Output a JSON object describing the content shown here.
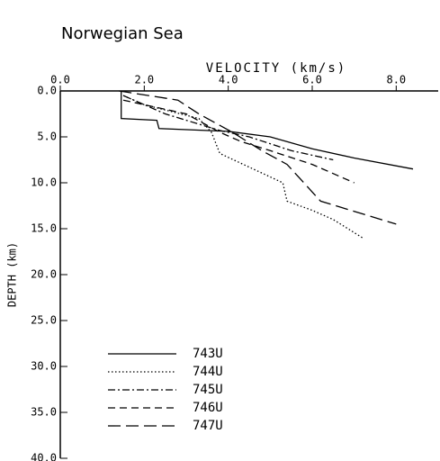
{
  "chart_data": {
    "type": "line",
    "title": "Norwegian Sea",
    "x_label": "VELOCITY (km/s)",
    "y_label": "DEPTH (km)",
    "xlim": [
      0,
      9
    ],
    "ylim": [
      0,
      40
    ],
    "y_inverted": true,
    "x_axis_position": "top",
    "xticks": [
      {
        "value": 0,
        "label": "0.0"
      },
      {
        "value": 2,
        "label": "2.0"
      },
      {
        "value": 4,
        "label": "4.0"
      },
      {
        "value": 6,
        "label": "6.0"
      },
      {
        "value": 8,
        "label": "8.0"
      }
    ],
    "yticks": [
      {
        "value": 0,
        "label": "0.0"
      },
      {
        "value": 5,
        "label": "5.0"
      },
      {
        "value": 10,
        "label": "10.0"
      },
      {
        "value": 15,
        "label": "15.0"
      },
      {
        "value": 20,
        "label": "20.0"
      },
      {
        "value": 25,
        "label": "25.0"
      },
      {
        "value": 30,
        "label": "30.0"
      },
      {
        "value": 35,
        "label": "35.0"
      },
      {
        "value": 40,
        "label": "40.0"
      }
    ],
    "legend": "lower left",
    "series": [
      {
        "name": "743U",
        "color": "#000000",
        "dash": "solid",
        "x": [
          1.45,
          1.45,
          2.3,
          2.35,
          4.0,
          5.0,
          6.0,
          7.0,
          8.4
        ],
        "values": [
          0,
          3.0,
          3.2,
          4.1,
          4.4,
          5.0,
          6.3,
          7.3,
          8.5
        ]
      },
      {
        "name": "744U",
        "color": "#000000",
        "dash": "dotted",
        "x": [
          1.5,
          2.0,
          3.3,
          3.6,
          3.8,
          5.3,
          5.4,
          6.0,
          6.5,
          7.2
        ],
        "values": [
          0.5,
          1.5,
          3.0,
          4.5,
          6.8,
          10.0,
          12.0,
          13.0,
          14.0,
          16.0
        ]
      },
      {
        "name": "745U",
        "color": "#000000",
        "dash": "dashdot",
        "x": [
          1.5,
          2.5,
          3.8,
          4.5,
          5.5,
          6.5
        ],
        "values": [
          0.5,
          2.5,
          4.3,
          5.0,
          6.5,
          7.5
        ]
      },
      {
        "name": "746U",
        "color": "#000000",
        "dash": "dashed",
        "x": [
          1.5,
          3.0,
          3.8,
          4.3,
          5.0,
          6.0,
          7.0
        ],
        "values": [
          1.0,
          2.5,
          4.5,
          5.5,
          6.5,
          8.0,
          10.0
        ]
      },
      {
        "name": "747U",
        "color": "#000000",
        "dash": "longdash",
        "x": [
          1.4,
          2.8,
          3.3,
          4.1,
          4.8,
          5.4,
          5.8,
          6.2,
          8.0
        ],
        "values": [
          0,
          1.0,
          2.5,
          4.5,
          6.5,
          8.0,
          10.0,
          12.0,
          14.5
        ]
      }
    ]
  }
}
